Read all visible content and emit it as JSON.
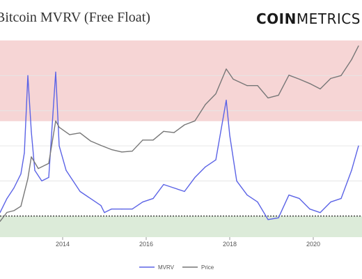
{
  "header": {
    "title": "Bitcoin MVRV (Free Float)",
    "brand_bold": "COIN",
    "brand_light": "METRICS"
  },
  "chart_data": {
    "type": "line",
    "title": "Bitcoin MVRV (Free Float)",
    "xlabel": "",
    "ylabel": "",
    "x_ticks": [
      "2014",
      "2016",
      "2018",
      "2020"
    ],
    "xlim": [
      "2012-07",
      "2021-03"
    ],
    "mvrv_ylim": [
      0.4,
      6.0
    ],
    "price_ylim_log10": [
      0.5,
      4.8
    ],
    "bands": [
      {
        "from": 3.7,
        "to": 6.0,
        "color": "#f6d5d5"
      },
      {
        "from": 2.4,
        "to": 3.7,
        "color": "#ffffff"
      },
      {
        "from": 0.4,
        "to": 1.0,
        "color": "#dcebd9"
      }
    ],
    "reference_line": 1.0,
    "grid": true,
    "legend_position": "bottom-center",
    "series": [
      {
        "name": "MVRV",
        "color": "#5b63e6",
        "x": [
          "2012-07",
          "2012-09",
          "2012-11",
          "2013-01",
          "2013-02",
          "2013-03",
          "2013-04",
          "2013-05",
          "2013-07",
          "2013-09",
          "2013-11",
          "2013-12",
          "2014-02",
          "2014-04",
          "2014-06",
          "2014-09",
          "2014-12",
          "2015-01",
          "2015-03",
          "2015-06",
          "2015-09",
          "2015-12",
          "2016-03",
          "2016-06",
          "2016-09",
          "2016-12",
          "2017-03",
          "2017-06",
          "2017-09",
          "2017-12",
          "2018-01",
          "2018-03",
          "2018-06",
          "2018-09",
          "2018-12",
          "2019-03",
          "2019-06",
          "2019-09",
          "2019-12",
          "2020-03",
          "2020-06",
          "2020-09",
          "2020-12",
          "2021-02"
        ],
        "values": [
          1.1,
          1.5,
          1.8,
          2.2,
          2.8,
          5.0,
          3.4,
          2.3,
          2.0,
          2.1,
          5.1,
          3.0,
          2.3,
          2.0,
          1.7,
          1.5,
          1.3,
          1.1,
          1.2,
          1.2,
          1.2,
          1.4,
          1.5,
          1.9,
          1.8,
          1.7,
          2.1,
          2.4,
          2.6,
          4.3,
          3.3,
          2.0,
          1.6,
          1.4,
          0.9,
          0.95,
          1.6,
          1.5,
          1.2,
          1.1,
          1.4,
          1.5,
          2.3,
          3.0
        ]
      },
      {
        "name": "Price",
        "color": "#777777",
        "x": [
          "2012-07",
          "2012-09",
          "2012-11",
          "2013-01",
          "2013-03",
          "2013-04",
          "2013-06",
          "2013-09",
          "2013-11",
          "2013-12",
          "2014-03",
          "2014-06",
          "2014-09",
          "2014-12",
          "2015-03",
          "2015-06",
          "2015-09",
          "2015-12",
          "2016-03",
          "2016-06",
          "2016-09",
          "2016-12",
          "2017-03",
          "2017-06",
          "2017-09",
          "2017-12",
          "2018-02",
          "2018-06",
          "2018-09",
          "2018-12",
          "2019-03",
          "2019-06",
          "2019-09",
          "2019-12",
          "2020-03",
          "2020-06",
          "2020-09",
          "2020-12",
          "2021-02"
        ],
        "values": [
          7,
          11,
          12,
          15,
          60,
          180,
          100,
          130,
          1100,
          800,
          550,
          600,
          400,
          320,
          260,
          230,
          240,
          420,
          420,
          650,
          610,
          900,
          1100,
          2500,
          4300,
          15000,
          9000,
          6500,
          6500,
          3500,
          4000,
          11000,
          9000,
          7200,
          5500,
          9300,
          10800,
          24000,
          48000
        ]
      }
    ]
  },
  "legend": {
    "mvrv_label": "MVRV",
    "price_label": "Price",
    "mvrv_color": "#5b63e6",
    "price_color": "#777777"
  }
}
